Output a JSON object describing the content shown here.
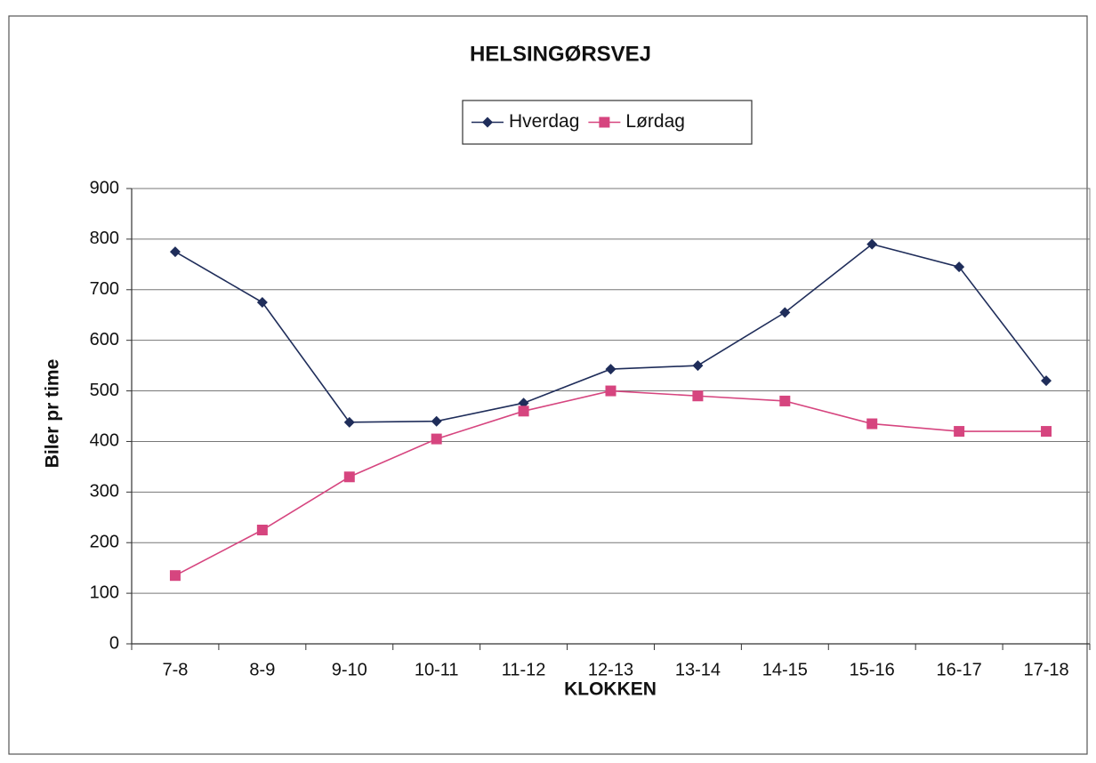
{
  "chart_data": {
    "type": "line",
    "title": "HELSINGØRSVEJ",
    "x_label": "KLOKKEN",
    "y_label": "Biler pr time",
    "categories": [
      "7-8",
      "8-9",
      "9-10",
      "10-11",
      "11-12",
      "12-13",
      "13-14",
      "14-15",
      "15-16",
      "16-17",
      "17-18"
    ],
    "series": [
      {
        "name": "Hverdag",
        "color": "#1f2d5a",
        "marker": "diamond",
        "values": [
          775,
          675,
          438,
          440,
          476,
          543,
          550,
          655,
          790,
          745,
          520
        ]
      },
      {
        "name": "Lørdag",
        "color": "#d6457f",
        "marker": "square",
        "values": [
          135,
          225,
          330,
          405,
          460,
          500,
          490,
          480,
          435,
          420,
          420
        ]
      }
    ],
    "ylim": [
      0,
      900
    ],
    "yticks": [
      0,
      100,
      200,
      300,
      400,
      500,
      600,
      700,
      800,
      900
    ],
    "grid": true,
    "legend": "top"
  }
}
